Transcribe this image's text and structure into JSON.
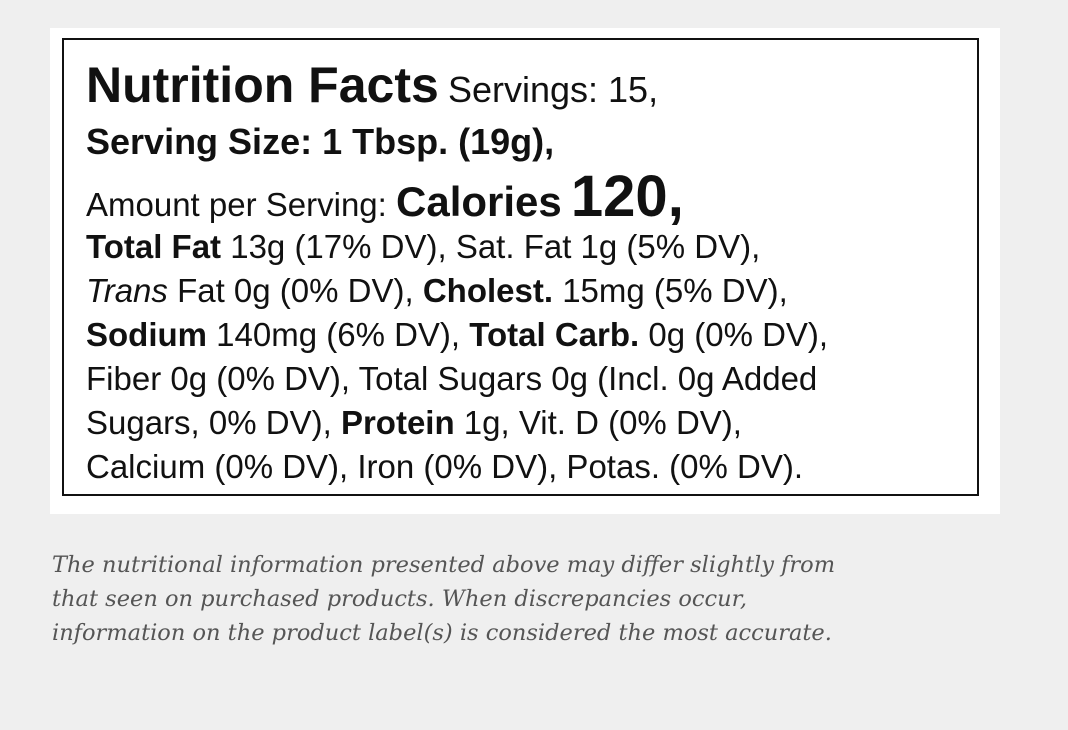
{
  "label": {
    "lines": [
      [
        "Nutrition Facts",
        "Servings: 15,"
      ],
      [
        "Serving Size: 1 Tbsp. (19g),"
      ],
      [
        "Amount per Serving:",
        "Calories",
        "120,"
      ],
      [
        "Total Fat",
        "13g (17% DV), Sat. Fat 1g (5% DV),"
      ],
      [
        "Trans",
        "Fat 0g (0% DV),",
        "Cholest.",
        "15mg (5% DV),"
      ],
      [
        "Sodium",
        "140mg (6% DV),",
        "Total Carb.",
        "0g (0% DV),"
      ],
      [
        "Fiber 0g (0% DV), Total Sugars 0g (Incl. 0g Added"
      ],
      [
        "Sugars, 0% DV),",
        "Protein",
        "1g, Vit. D (0% DV),"
      ],
      [
        "Calcium (0% DV), Iron (0% DV), Potas. (0% DV)."
      ]
    ]
  },
  "caption": {
    "lines": [
      "The nutritional information presented above may differ slightly from",
      "that seen on purchased products. When discrepancies occur,",
      "information on the product label(s) is considered the most accurate."
    ]
  }
}
